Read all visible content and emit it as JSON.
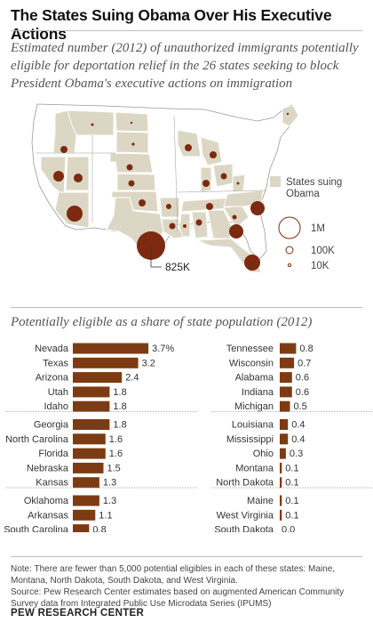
{
  "title": "The States Suing Obama Over His Executive Actions",
  "subtitle": "Estimated number (2012) of unauthorized immigrants potentially eligible for deportation relief in the 26 states seeking to block President Obama's executive actions on immigration",
  "map": {
    "legend_label": "States suing Obama",
    "size_legend": [
      "1M",
      "100K",
      "10K"
    ],
    "callout": "825K",
    "colors": {
      "suing": "#dcd7c4",
      "other": "#ffffff",
      "border": "#9a9a9a",
      "bubble": "#7d2a10"
    }
  },
  "bars_title": "Potentially eligible as a share of state population (2012)",
  "chart_data": {
    "type": "bar",
    "title": "Potentially eligible as a share of state population (2012)",
    "xlabel": "",
    "ylabel": "",
    "unit": "%",
    "color": "#7d3b14",
    "left_groups": [
      [
        {
          "state": "Nevada",
          "value": 3.7,
          "label": "3.7%"
        },
        {
          "state": "Texas",
          "value": 3.2,
          "label": "3.2"
        },
        {
          "state": "Arizona",
          "value": 2.4,
          "label": "2.4"
        },
        {
          "state": "Utah",
          "value": 1.8,
          "label": "1.8"
        },
        {
          "state": "Idaho",
          "value": 1.8,
          "label": "1.8"
        }
      ],
      [
        {
          "state": "Georgia",
          "value": 1.8,
          "label": "1.8"
        },
        {
          "state": "North Carolina",
          "value": 1.6,
          "label": "1.6"
        },
        {
          "state": "Florida",
          "value": 1.6,
          "label": "1.6"
        },
        {
          "state": "Nebraska",
          "value": 1.5,
          "label": "1.5"
        },
        {
          "state": "Kansas",
          "value": 1.3,
          "label": "1.3"
        }
      ],
      [
        {
          "state": "Oklahoma",
          "value": 1.3,
          "label": "1.3"
        },
        {
          "state": "Arkansas",
          "value": 1.1,
          "label": "1.1"
        },
        {
          "state": "South Carolina",
          "value": 0.8,
          "label": "0.8"
        }
      ]
    ],
    "right_groups": [
      [
        {
          "state": "Tennessee",
          "value": 0.8,
          "label": "0.8"
        },
        {
          "state": "Wisconsin",
          "value": 0.7,
          "label": "0.7"
        },
        {
          "state": "Alabama",
          "value": 0.6,
          "label": "0.6"
        },
        {
          "state": "Indiana",
          "value": 0.6,
          "label": "0.6"
        },
        {
          "state": "Michigan",
          "value": 0.5,
          "label": "0.5"
        }
      ],
      [
        {
          "state": "Louisiana",
          "value": 0.4,
          "label": "0.4"
        },
        {
          "state": "Mississippi",
          "value": 0.4,
          "label": "0.4"
        },
        {
          "state": "Ohio",
          "value": 0.3,
          "label": "0.3"
        },
        {
          "state": "Montana",
          "value": 0.1,
          "label": "0.1"
        },
        {
          "state": "North Dakota",
          "value": 0.1,
          "label": "0.1"
        }
      ],
      [
        {
          "state": "Maine",
          "value": 0.1,
          "label": "0.1"
        },
        {
          "state": "West Virginia",
          "value": 0.1,
          "label": "0.1"
        },
        {
          "state": "South Dakota",
          "value": 0.0,
          "label": "0.0"
        }
      ]
    ]
  },
  "note": "Note: There are fewer than 5,000 potential eligibles in each of these states: Maine, Montana, North Dakota, South Dakota, and West Virginia.",
  "source": "Source: Pew Research Center estimates based on augmented American Community Survey data from Integrated Public Use Microdata Series (IPUMS)",
  "brand": "PEW RESEARCH CENTER"
}
